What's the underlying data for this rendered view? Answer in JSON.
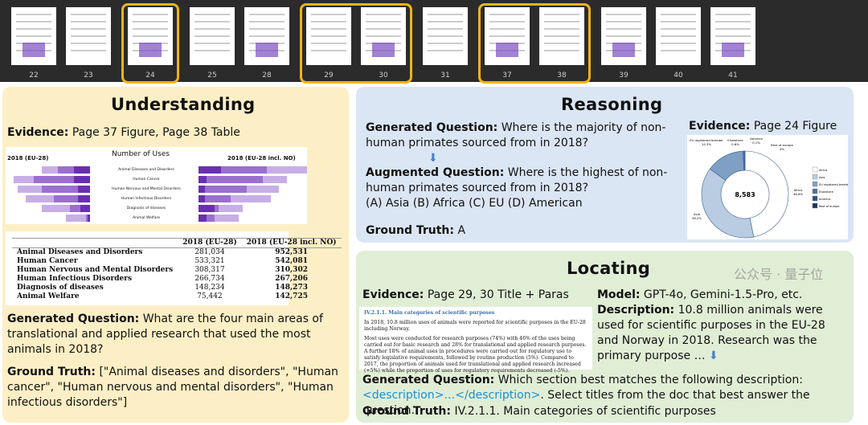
{
  "thumbnails": {
    "groups": [
      {
        "highlighted": false,
        "pages": [
          "22",
          "23"
        ]
      },
      {
        "highlighted": true,
        "pages": [
          "24"
        ]
      },
      {
        "highlighted": false,
        "pages": [
          "25",
          "28"
        ]
      },
      {
        "highlighted": true,
        "pages": [
          "29",
          "30"
        ]
      },
      {
        "highlighted": false,
        "pages": [
          "31"
        ]
      },
      {
        "highlighted": true,
        "pages": [
          "37",
          "38"
        ]
      },
      {
        "highlighted": false,
        "pages": [
          "39",
          "40",
          "41"
        ]
      }
    ],
    "highlight_color": "#f2b315"
  },
  "understanding": {
    "title": "Understanding",
    "evidence_label": "Evidence:",
    "evidence": "Page 37 Figure, Page 38 Table",
    "figure": {
      "title": "Number of Uses",
      "left_label": "2018 (EU-28)",
      "right_label": "2018 (EU-28 incl. NO)",
      "categories": [
        "Animal Diseases and Disorders",
        "Human Cancer",
        "Human Nervous and Mental Disorders",
        "Human Infectious Disorders",
        "Diagnosis of diseases",
        "Animal Welfare"
      ]
    },
    "table": {
      "headers": [
        "",
        "2018 (EU-28)",
        "2018 (EU-28 incl. NO)"
      ],
      "rows": [
        [
          "Animal Diseases and Disorders",
          "281,034",
          "952,531"
        ],
        [
          "Human Cancer",
          "533,321",
          "542,081"
        ],
        [
          "Human Nervous and Mental Disorders",
          "308,317",
          "310,302"
        ],
        [
          "Human Infectious Disorders",
          "266,734",
          "267,206"
        ],
        [
          "Diagnosis of diseases",
          "148,234",
          "148,273"
        ],
        [
          "Animal Welfare",
          "75,442",
          "142,725"
        ]
      ]
    },
    "question_label": "Generated Question:",
    "question": "What are the four main areas of translational and applied research that used the most animals in 2018?",
    "truth_label": "Ground Truth:",
    "truth": "[\"Animal diseases and disorders\", \"Human cancer\", \"Human nervous and mental disorders\", \"Human infectious disorders\"]"
  },
  "reasoning": {
    "title": "Reasoning",
    "gen_label": "Generated Question:",
    "gen": "Where is the majority of non-human primates sourced from in 2018?",
    "aug_label": "Augmented Question:",
    "aug": "Where is the highest of non-human primates sourced from in 2018?",
    "options": "(A) Asia (B) Africa (C) EU (D) American",
    "truth_label": "Ground Truth:",
    "truth": "A",
    "evidence_label": "Evidence:",
    "evidence": "Page 24 Figure",
    "donut": {
      "center": "8,583",
      "slices": [
        {
          "name": "Africa",
          "value": 46.8,
          "label": "46.8%",
          "color": "#ffffff"
        },
        {
          "name": "Asia",
          "value": 38.2,
          "label": "38.2%",
          "color": "#b9cce2"
        },
        {
          "name": "EU registered breeder",
          "value": 14.3,
          "label": "14.3%",
          "color": "#7f9fc4"
        },
        {
          "name": "Elsewhere",
          "value": 0.6,
          "label": "0.6%",
          "color": "#4c73a3"
        },
        {
          "name": "America",
          "value": 0.1,
          "label": "0.1%",
          "color": "#2c5288"
        },
        {
          "name": "Rest of europe",
          "value": 0,
          "label": "0%",
          "color": "#16356a"
        }
      ]
    }
  },
  "locating": {
    "title": "Locating",
    "evidence_label": "Evidence:",
    "evidence": "Page 29, 30 Title + Paras",
    "doc": {
      "heading": "IV.2.1.1. Main categories of scientific purposes",
      "p1": "In 2018, 10.8 million uses of animals were reported for scientific purposes in the EU-28 including Norway.",
      "p2": "Most uses were conducted for research purposes (74%) with 46% of the uses being carried out for basic research and 28% for translational and applied research purposes. A further 18% of animal uses in procedures were carried out for regulatory use to satisfy legislative requirements, followed by routine production (5%). Compared to 2017, the proportion of animals used for translational and applied research increased (+5%) while the proportion of uses for regulatory requirements decreased (-5%)."
    },
    "model_label": "Model:",
    "model": "GPT-4o, Gemini-1.5-Pro, etc.",
    "desc_label": "Description:",
    "desc": "10.8 million animals were used for scientific purposes in the EU-28 and Norway in 2018. Research was the primary purpose …",
    "question_label": "Generated Question:",
    "question_a": "Which section best matches the following description:",
    "question_tag": "<description>…</description>",
    "question_b": ". Select titles from the doc that best answer the question.",
    "truth_label": "Ground Truth:",
    "truth": "IV.2.1.1. Main categories of scientific purposes"
  },
  "watermark": "公众号 · 量子位"
}
